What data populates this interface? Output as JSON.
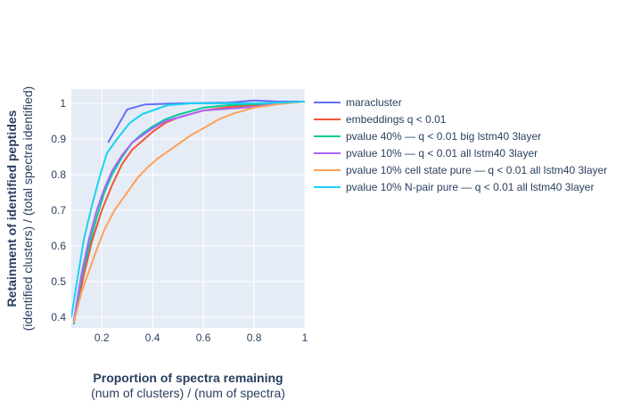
{
  "chart_data": {
    "type": "line",
    "xlabel": "Proportion of spectra remaining",
    "xlabel_sub": "(num of clusters) / (num of spectra)",
    "ylabel": "Retainment of identified peptides",
    "ylabel_sub": "(identified clusters) / (total spectra identified)",
    "xlim": [
      0.08,
      1.0
    ],
    "ylim": [
      0.37,
      1.04
    ],
    "xticks": [
      0.2,
      0.4,
      0.6,
      0.8,
      1
    ],
    "xtick_labels": [
      "0.2",
      "0.4",
      "0.6",
      "0.8",
      "1"
    ],
    "yticks": [
      0.4,
      0.5,
      0.6,
      0.7,
      0.8,
      0.9,
      1
    ],
    "ytick_labels": [
      "0.4",
      "0.5",
      "0.6",
      "0.7",
      "0.8",
      "0.9",
      "1"
    ],
    "grid": true,
    "legend_position": "right",
    "series": [
      {
        "name": "maracluster",
        "color": "#636efa",
        "x": [
          0.225,
          0.3,
          0.37,
          0.5,
          0.7,
          0.8,
          0.9,
          1.0
        ],
        "y": [
          0.89,
          0.983,
          0.997,
          1.0,
          1.002,
          1.008,
          1.005,
          1.005
        ]
      },
      {
        "name": "embeddings q < 0.01",
        "color": "#ef553b",
        "x": [
          0.09,
          0.13,
          0.16,
          0.2,
          0.24,
          0.28,
          0.32,
          0.36,
          0.4,
          0.45,
          0.5,
          0.55,
          0.6,
          0.7,
          0.8,
          0.9,
          1.0
        ],
        "y": [
          0.385,
          0.52,
          0.61,
          0.7,
          0.77,
          0.83,
          0.87,
          0.895,
          0.92,
          0.945,
          0.96,
          0.97,
          0.98,
          0.99,
          0.995,
          1.0,
          1.005
        ]
      },
      {
        "name": "pvalue 40% — q < 0.01 big lstm40 3layer",
        "color": "#00cc96",
        "x": [
          0.09,
          0.12,
          0.15,
          0.18,
          0.21,
          0.24,
          0.28,
          0.32,
          0.36,
          0.4,
          0.45,
          0.5,
          0.55,
          0.6,
          0.7,
          0.8,
          0.9,
          1.0
        ],
        "y": [
          0.38,
          0.51,
          0.6,
          0.68,
          0.75,
          0.8,
          0.85,
          0.89,
          0.915,
          0.935,
          0.955,
          0.968,
          0.978,
          0.988,
          0.995,
          0.998,
          1.0,
          1.005
        ]
      },
      {
        "name": "pvalue 10% — q < 0.01 all lstm40 3layer",
        "color": "#ab63fa",
        "x": [
          0.09,
          0.12,
          0.15,
          0.18,
          0.21,
          0.24,
          0.28,
          0.32,
          0.36,
          0.4,
          0.45,
          0.5,
          0.55,
          0.6,
          0.7,
          0.8,
          0.9,
          1.0
        ],
        "y": [
          0.39,
          0.52,
          0.62,
          0.7,
          0.76,
          0.81,
          0.855,
          0.89,
          0.91,
          0.93,
          0.95,
          0.96,
          0.97,
          0.98,
          0.985,
          0.99,
          1.0,
          1.005
        ]
      },
      {
        "name": "pvalue 10% cell state pure — q < 0.01 all lstm40 3layer",
        "color": "#ffa15a",
        "x": [
          0.09,
          0.12,
          0.15,
          0.18,
          0.21,
          0.25,
          0.3,
          0.34,
          0.38,
          0.42,
          0.46,
          0.5,
          0.55,
          0.6,
          0.66,
          0.72,
          0.8,
          0.9,
          1.0
        ],
        "y": [
          0.385,
          0.47,
          0.53,
          0.59,
          0.645,
          0.7,
          0.75,
          0.79,
          0.82,
          0.845,
          0.865,
          0.885,
          0.91,
          0.93,
          0.955,
          0.972,
          0.988,
          0.998,
          1.005
        ]
      },
      {
        "name": "pvalue 10% N-pair pure — q < 0.01 all lstm40 3layer",
        "color": "#19d3f3",
        "x": [
          0.08,
          0.1,
          0.13,
          0.16,
          0.19,
          0.22,
          0.26,
          0.31,
          0.36,
          0.4,
          0.46,
          0.55,
          0.65,
          0.8,
          0.9,
          1.0
        ],
        "y": [
          0.4,
          0.49,
          0.62,
          0.71,
          0.79,
          0.86,
          0.9,
          0.945,
          0.97,
          0.98,
          0.995,
          1.0,
          1.0,
          1.0,
          1.002,
          1.005
        ]
      }
    ]
  }
}
